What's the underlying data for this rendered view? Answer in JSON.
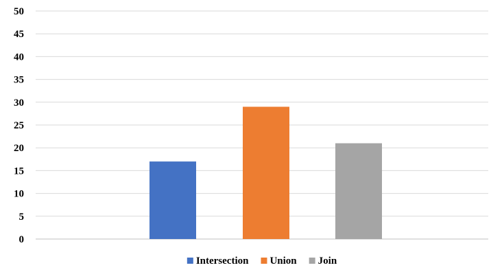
{
  "chart_data": {
    "type": "bar",
    "title": "",
    "xlabel": "",
    "ylabel": "",
    "categories": [
      "Intersection",
      "Union",
      "Join"
    ],
    "series": [
      {
        "name": "Intersection",
        "values": [
          17,
          null,
          null
        ],
        "color": "#4472C4"
      },
      {
        "name": "Union",
        "values": [
          null,
          29,
          null
        ],
        "color": "#ED7D31"
      },
      {
        "name": "Join",
        "values": [
          null,
          null,
          21
        ],
        "color": "#A5A5A5"
      }
    ],
    "values": [
      17,
      29,
      21
    ],
    "ylim": [
      0,
      50
    ],
    "yticks": [
      0,
      5,
      10,
      15,
      20,
      25,
      30,
      35,
      40,
      45,
      50
    ],
    "grid": true,
    "legend_position": "bottom",
    "gridline_color": "#D9D9D9",
    "text_color": "#000000"
  }
}
